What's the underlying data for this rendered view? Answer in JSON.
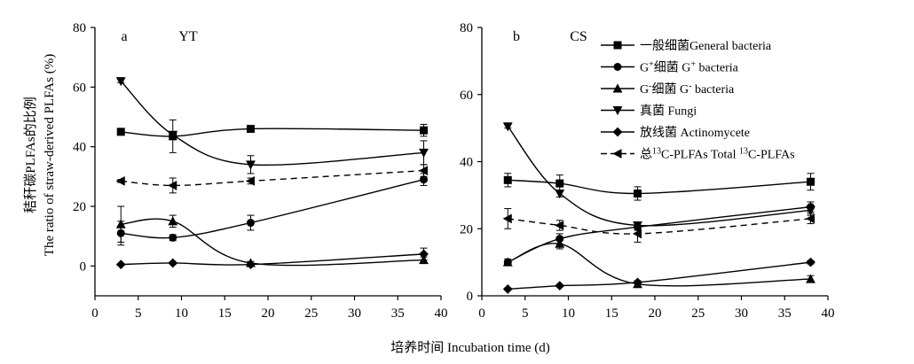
{
  "figure": {
    "xlabel": "培养时间 Incubation time (d)",
    "ylabel_line1": "秸秆碳PLFAs的比例",
    "ylabel_line2": "The ratio of straw-derived PLFAs (%)"
  },
  "legend": [
    {
      "marker": "square",
      "dashed": false,
      "label_html": "一般细菌General bacteria"
    },
    {
      "marker": "circle",
      "dashed": false,
      "label_html": "G<tspan baseline-shift=\"super\" font-size=\"10\">+</tspan>细菌 G<tspan baseline-shift=\"super\" font-size=\"10\">+</tspan> bacteria"
    },
    {
      "marker": "triangle-up",
      "dashed": false,
      "label_html": "G<tspan baseline-shift=\"super\" font-size=\"10\">-</tspan>细菌 G<tspan baseline-shift=\"super\" font-size=\"10\">-</tspan> bacteria"
    },
    {
      "marker": "triangle-down",
      "dashed": false,
      "label_html": "真菌 Fungi"
    },
    {
      "marker": "diamond",
      "dashed": false,
      "label_html": "放线菌 Actinomycete"
    },
    {
      "marker": "triangle-left",
      "dashed": true,
      "label_html": "总<tspan baseline-shift=\"super\" font-size=\"10\">13</tspan>C-PLFAs Total <tspan baseline-shift=\"super\" font-size=\"10\">13</tspan>C-PLFAs"
    }
  ],
  "chart_data": [
    {
      "type": "scatter",
      "panel": "a",
      "site": "YT",
      "xlim": [
        0,
        40
      ],
      "ylim": [
        -10,
        80
      ],
      "xticks": [
        0,
        5,
        10,
        15,
        20,
        25,
        30,
        35,
        40
      ],
      "yticks": [
        0,
        20,
        40,
        60,
        80
      ],
      "x": [
        3,
        9,
        18,
        38
      ],
      "series": [
        {
          "name": "一般细菌General bacteria",
          "marker": "square",
          "dashed": false,
          "values": [
            45,
            43.5,
            46,
            45.5
          ],
          "errors": [
            0,
            5.5,
            0.5,
            2
          ]
        },
        {
          "name": "G+细菌 G+ bacteria",
          "marker": "circle",
          "dashed": false,
          "values": [
            11,
            9.5,
            14.5,
            29
          ],
          "errors": [
            4,
            1,
            2.5,
            2
          ]
        },
        {
          "name": "G-细菌 G- bacteria",
          "marker": "triangle-up",
          "dashed": false,
          "values": [
            14,
            15,
            1,
            2
          ],
          "errors": [
            6,
            2,
            0.5,
            1
          ]
        },
        {
          "name": "真菌 Fungi",
          "marker": "triangle-down",
          "dashed": false,
          "values": [
            62,
            44,
            34,
            38
          ],
          "errors": [
            0.5,
            1,
            3,
            4
          ]
        },
        {
          "name": "放线菌 Actinomycete",
          "marker": "diamond",
          "dashed": false,
          "values": [
            0.5,
            1,
            0.5,
            4
          ],
          "errors": [
            0,
            0.3,
            0.3,
            2
          ]
        },
        {
          "name": "总13C-PLFAs Total 13C-PLFAs",
          "marker": "triangle-left",
          "dashed": true,
          "values": [
            28.5,
            27,
            28.5,
            32
          ],
          "errors": [
            0.5,
            2.5,
            1,
            2
          ]
        }
      ]
    },
    {
      "type": "scatter",
      "panel": "b",
      "site": "CS",
      "xlim": [
        0,
        40
      ],
      "ylim": [
        0,
        80
      ],
      "xticks": [
        0,
        5,
        10,
        15,
        20,
        25,
        30,
        35,
        40
      ],
      "yticks": [
        0,
        20,
        40,
        60,
        80
      ],
      "x": [
        3,
        9,
        18,
        38
      ],
      "series": [
        {
          "name": "一般细菌General bacteria",
          "marker": "square",
          "dashed": false,
          "values": [
            34.5,
            33.5,
            30.5,
            34
          ],
          "errors": [
            2,
            2.5,
            2,
            2.5
          ]
        },
        {
          "name": "G+细菌 G+ bacteria",
          "marker": "circle",
          "dashed": false,
          "values": [
            10,
            17,
            20.5,
            26.5
          ],
          "errors": [
            1,
            1.5,
            1,
            1.5
          ]
        },
        {
          "name": "G-细菌 G- bacteria",
          "marker": "triangle-up",
          "dashed": false,
          "values": [
            10,
            15.5,
            3.5,
            5
          ],
          "errors": [
            0.5,
            1.5,
            1,
            1
          ]
        },
        {
          "name": "真菌 Fungi",
          "marker": "triangle-down",
          "dashed": false,
          "values": [
            50.5,
            30.5,
            21,
            25.5
          ],
          "errors": [
            0.5,
            1,
            1,
            1.5
          ]
        },
        {
          "name": "放线菌 Actinomycete",
          "marker": "diamond",
          "dashed": false,
          "values": [
            2,
            3,
            4,
            10
          ],
          "errors": [
            0.3,
            0.3,
            0.3,
            0.5
          ]
        },
        {
          "name": "总13C-PLFAs Total 13C-PLFAs",
          "marker": "triangle-left",
          "dashed": true,
          "values": [
            23,
            21,
            18.5,
            23
          ],
          "errors": [
            3,
            1.5,
            2.5,
            1.5
          ]
        }
      ]
    }
  ]
}
